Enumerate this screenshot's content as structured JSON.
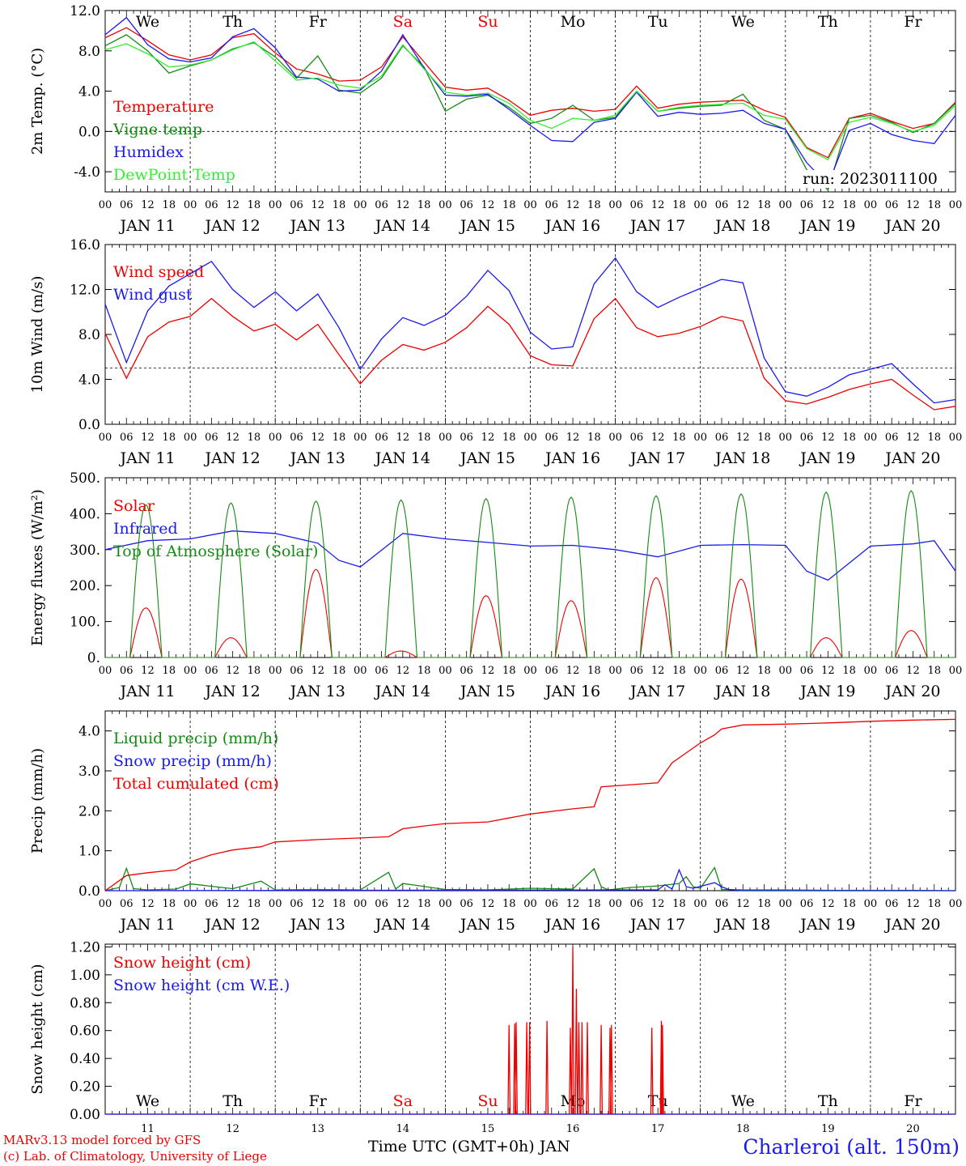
{
  "run_label": "run: 2023011100",
  "footer": {
    "model": "MARv3.13 model forced by GFS",
    "lab": "(c) Lab. of Climatology, University of Liege",
    "station": "Charleroi (alt. 150m)",
    "xtitle": "Time UTC (GMT+0h) JAN"
  },
  "colors": {
    "red": "#ee0000",
    "blue": "#1a1aee",
    "green": "#138a13",
    "lightgreen": "#33ee33",
    "weekend": "#ee0000"
  },
  "days": {
    "weekday_labels": [
      "We",
      "Th",
      "Fr",
      "Sa",
      "Su",
      "Mo",
      "Tu",
      "We",
      "Th",
      "Fr"
    ],
    "weekend_index": [
      3,
      4
    ],
    "date_labels": [
      "JAN 11",
      "JAN 12",
      "JAN 13",
      "JAN 14",
      "JAN 15",
      "JAN 16",
      "JAN 17",
      "JAN 18",
      "JAN 19",
      "JAN 20"
    ],
    "day_numbers": [
      "11",
      "12",
      "13",
      "14",
      "15",
      "16",
      "17",
      "18",
      "19",
      "20"
    ],
    "hour_ticks": [
      "00",
      "06",
      "12",
      "18"
    ],
    "final_tick": "00"
  },
  "chart_data": [
    {
      "type": "line",
      "ylabel": "2m Temp. (°C)",
      "ylim": [
        -6,
        12
      ],
      "yticks": [
        "-4.0",
        "0.0",
        "4.0",
        "8.0",
        "12.0"
      ],
      "ytick_values": [
        -4,
        0,
        4,
        8,
        12
      ],
      "reference_line": 0,
      "x": [
        0,
        6,
        12,
        18,
        24,
        30,
        36,
        42,
        48,
        54,
        60,
        66,
        72,
        78,
        84,
        90,
        96,
        102,
        108,
        114,
        120,
        126,
        132,
        138,
        144,
        150,
        156,
        162,
        168,
        174,
        180,
        186,
        192,
        198,
        204,
        210,
        216,
        222,
        228,
        234,
        240
      ],
      "series": [
        {
          "name": "Temperature",
          "color": "red",
          "values": [
            9.3,
            10.3,
            9.0,
            7.6,
            7.1,
            7.6,
            9.3,
            9.7,
            7.8,
            6.2,
            5.7,
            5.0,
            5.1,
            6.4,
            9.4,
            6.9,
            4.4,
            4.1,
            4.3,
            3.1,
            1.6,
            2.1,
            2.3,
            2.0,
            2.2,
            4.5,
            2.3,
            2.7,
            2.9,
            3.0,
            3.1,
            2.1,
            1.4,
            -1.6,
            -2.6,
            1.3,
            1.8,
            1.0,
            0.3,
            0.8,
            2.9
          ]
        },
        {
          "name": "Vigne temp",
          "color": "green",
          "values": [
            8.5,
            9.6,
            8.0,
            5.8,
            6.5,
            7.1,
            8.2,
            8.8,
            7.4,
            5.3,
            7.5,
            4.1,
            3.8,
            5.3,
            8.5,
            6.4,
            2.0,
            3.2,
            3.6,
            2.4,
            0.8,
            1.3,
            2.6,
            1.1,
            1.4,
            4.0,
            2.0,
            2.3,
            2.5,
            2.6,
            3.7,
            1.1,
            0.2,
            -3.8,
            -5.8,
            1.3,
            1.6,
            0.9,
            -0.1,
            0.8,
            2.8
          ]
        },
        {
          "name": "Humidex",
          "color": "blue",
          "values": [
            9.6,
            11.3,
            8.6,
            7.2,
            6.9,
            7.3,
            9.4,
            10.2,
            8.3,
            5.4,
            5.2,
            4.0,
            4.1,
            6.0,
            9.6,
            6.3,
            3.6,
            3.5,
            3.7,
            2.2,
            0.6,
            -0.9,
            -1.0,
            0.9,
            1.3,
            3.9,
            1.5,
            1.9,
            1.7,
            1.8,
            2.1,
            0.8,
            0.2,
            -3.1,
            -5.3,
            0.1,
            0.8,
            -0.3,
            -0.9,
            -1.2,
            1.6
          ]
        },
        {
          "name": "DewPoint Temp",
          "color": "lightgreen",
          "values": [
            8.1,
            8.7,
            7.7,
            6.4,
            6.6,
            7.1,
            8.1,
            8.9,
            7.0,
            5.1,
            5.3,
            4.6,
            4.3,
            5.5,
            8.6,
            6.2,
            3.9,
            3.6,
            3.8,
            2.8,
            1.1,
            0.3,
            1.3,
            1.1,
            1.6,
            4.0,
            2.0,
            2.4,
            2.6,
            2.7,
            2.8,
            1.6,
            1.2,
            -1.7,
            -2.8,
            0.9,
            1.4,
            0.8,
            0.0,
            0.6,
            2.6
          ]
        }
      ]
    },
    {
      "type": "line",
      "ylabel": "10m Wind (m/s)",
      "ylim": [
        0,
        16
      ],
      "yticks": [
        "0.0",
        "4.0",
        "8.0",
        "12.0",
        "16.0"
      ],
      "ytick_values": [
        0,
        4,
        8,
        12,
        16
      ],
      "reference_line": 5,
      "x": [
        0,
        6,
        12,
        18,
        24,
        30,
        36,
        42,
        48,
        54,
        60,
        66,
        72,
        78,
        84,
        90,
        96,
        102,
        108,
        114,
        120,
        126,
        132,
        138,
        144,
        150,
        156,
        162,
        168,
        174,
        180,
        186,
        192,
        198,
        204,
        210,
        216,
        222,
        228,
        234,
        240
      ],
      "series": [
        {
          "name": "Wind speed",
          "color": "red",
          "values": [
            8.1,
            4.1,
            7.8,
            9.1,
            9.6,
            11.2,
            9.6,
            8.3,
            8.9,
            7.5,
            8.9,
            6.2,
            3.6,
            5.7,
            7.1,
            6.6,
            7.3,
            8.6,
            10.5,
            8.9,
            6.1,
            5.3,
            5.2,
            9.4,
            11.2,
            8.6,
            7.8,
            8.1,
            8.7,
            9.6,
            9.2,
            4.1,
            2.1,
            1.8,
            2.4,
            3.1,
            3.6,
            4.0,
            2.6,
            1.3,
            1.6
          ]
        },
        {
          "name": "Wind gust",
          "color": "blue",
          "values": [
            10.7,
            5.5,
            10.1,
            12.3,
            13.4,
            14.5,
            12.0,
            10.4,
            11.8,
            10.1,
            11.6,
            8.6,
            4.9,
            7.6,
            9.5,
            8.8,
            9.7,
            11.4,
            13.7,
            11.9,
            8.2,
            6.7,
            6.9,
            12.5,
            14.8,
            11.8,
            10.4,
            11.3,
            12.1,
            12.9,
            12.6,
            5.9,
            2.9,
            2.5,
            3.3,
            4.4,
            4.9,
            5.4,
            3.6,
            1.9,
            2.2
          ]
        }
      ]
    },
    {
      "type": "line",
      "ylabel": "Energy fluxes (W/m²)",
      "ylim": [
        0,
        500
      ],
      "yticks": [
        "0.",
        "100.",
        "200.",
        "300.",
        "400.",
        "500."
      ],
      "ytick_values": [
        0,
        100,
        200,
        300,
        400,
        500
      ],
      "diurnal_window_hours": [
        7,
        16
      ],
      "series": [
        {
          "name": "Solar",
          "color": "red",
          "daily_peak": [
            138,
            55,
            245,
            18,
            172,
            158,
            222,
            218,
            55,
            75
          ]
        },
        {
          "name": "Infrared",
          "color": "blue",
          "x": [
            0,
            12,
            24,
            36,
            48,
            60,
            66,
            72,
            84,
            96,
            108,
            120,
            132,
            144,
            156,
            168,
            180,
            192,
            198,
            204,
            216,
            228,
            234,
            240
          ],
          "values": [
            300,
            325,
            330,
            352,
            345,
            318,
            270,
            252,
            345,
            330,
            320,
            310,
            312,
            300,
            280,
            312,
            314,
            312,
            240,
            215,
            310,
            316,
            325,
            240
          ]
        },
        {
          "name": "Top of Atmosphere (Solar)",
          "color": "green",
          "daily_peak": [
            425,
            430,
            435,
            438,
            442,
            446,
            450,
            455,
            460,
            464
          ]
        }
      ]
    },
    {
      "type": "line",
      "ylabel": "Precip (mm/h)",
      "ylim": [
        0,
        4.5
      ],
      "yticks": [
        "0.0",
        "1.0",
        "2.0",
        "3.0",
        "4.0"
      ],
      "ytick_values": [
        0,
        1,
        2,
        3,
        4
      ],
      "series": [
        {
          "name": "Liquid precip (mm/h)",
          "color": "green",
          "x": [
            0,
            4,
            6,
            8,
            12,
            20,
            24,
            36,
            44,
            48,
            60,
            72,
            80,
            82,
            84,
            96,
            108,
            120,
            132,
            138,
            140,
            142,
            148,
            156,
            162,
            164,
            166,
            168,
            172,
            174,
            180,
            192,
            204,
            216,
            228,
            240
          ],
          "values": [
            0,
            0.08,
            0.56,
            0.05,
            0.02,
            0.04,
            0.17,
            0.05,
            0.24,
            0.02,
            0.03,
            0.02,
            0.46,
            0.04,
            0.18,
            0.03,
            0.02,
            0.06,
            0.04,
            0.55,
            0.1,
            0.02,
            0.08,
            0.12,
            0.18,
            0.35,
            0.1,
            0.06,
            0.58,
            0.03,
            0.02,
            0.02,
            0.01,
            0.01,
            0.01,
            0.0
          ]
        },
        {
          "name": "Snow precip (mm/h)",
          "color": "blue",
          "x": [
            0,
            156,
            158,
            160,
            162,
            164,
            166,
            172,
            174,
            176,
            180,
            240
          ],
          "values": [
            0,
            0.02,
            0.15,
            0.04,
            0.52,
            0.1,
            0.06,
            0.2,
            0.1,
            0.03,
            0.0,
            0.0
          ]
        },
        {
          "name": "Total cumulated (cm)",
          "color": "red",
          "x": [
            0,
            6,
            12,
            20,
            24,
            30,
            36,
            44,
            48,
            60,
            72,
            80,
            84,
            90,
            96,
            108,
            114,
            120,
            132,
            138,
            140,
            156,
            160,
            168,
            172,
            174,
            180,
            192,
            204,
            216,
            228,
            240
          ],
          "values": [
            0,
            0.38,
            0.45,
            0.52,
            0.72,
            0.9,
            1.02,
            1.1,
            1.22,
            1.28,
            1.32,
            1.35,
            1.55,
            1.62,
            1.68,
            1.72,
            1.82,
            1.92,
            2.05,
            2.1,
            2.6,
            2.7,
            3.2,
            3.7,
            3.9,
            4.05,
            4.15,
            4.17,
            4.2,
            4.24,
            4.27,
            4.29
          ]
        }
      ]
    },
    {
      "type": "line",
      "ylabel": "Snow height (cm)",
      "ylim": [
        0,
        1.22
      ],
      "yticks": [
        "0.00",
        "0.20",
        "0.40",
        "0.60",
        "0.80",
        "1.00",
        "1.20"
      ],
      "ytick_values": [
        0,
        0.2,
        0.4,
        0.6,
        0.8,
        1.0,
        1.2
      ],
      "series": [
        {
          "name": "Snow height (cm)",
          "color": "red",
          "spikes": [
            [
              114.0,
              0.64
            ],
            [
              115.6,
              0.65
            ],
            [
              116.0,
              0.66
            ],
            [
              119.0,
              0.66
            ],
            [
              119.8,
              0.66
            ],
            [
              124.7,
              0.67
            ],
            [
              131.3,
              0.62
            ],
            [
              132.0,
              1.2
            ],
            [
              133.0,
              0.9
            ],
            [
              133.7,
              0.66
            ],
            [
              134.6,
              0.66
            ],
            [
              136.1,
              0.66
            ],
            [
              140.0,
              0.64
            ],
            [
              142.5,
              0.62
            ],
            [
              142.9,
              0.64
            ],
            [
              154.3,
              0.62
            ],
            [
              157.0,
              0.67
            ],
            [
              157.3,
              0.64
            ]
          ]
        },
        {
          "name": "Snow height (cm W.E.)",
          "color": "blue",
          "values": [
            0,
            0
          ]
        }
      ]
    }
  ]
}
